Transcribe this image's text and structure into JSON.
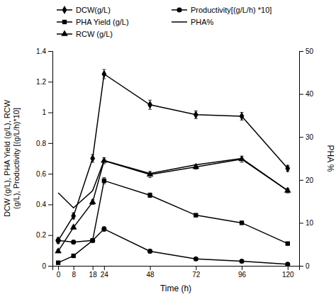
{
  "chart_data": {
    "type": "line",
    "xlabel": "Time (h)",
    "ylabel": "DCW (g/L), PHA Yield (g/L), RCW\n(g/L), Productivity [(g/L/h)*10]",
    "y2label": "PHA %",
    "x": [
      0,
      8,
      18,
      24,
      48,
      72,
      96,
      120
    ],
    "xlim": [
      -3,
      126
    ],
    "xticks": [
      0,
      8,
      18,
      24,
      48,
      72,
      96,
      120
    ],
    "ylim": [
      0,
      1.4
    ],
    "yticks": [
      0,
      0.2,
      0.4,
      0.6,
      0.8,
      1,
      1.2,
      1.4
    ],
    "y2lim": [
      0,
      50
    ],
    "y2ticks": [
      0,
      10,
      20,
      30,
      40,
      50
    ],
    "color": "#000000",
    "grid": false,
    "legend": "top",
    "series": [
      {
        "name": "DCW(g/L)",
        "marker": "diamond",
        "values": [
          0.165,
          0.325,
          0.7,
          1.25,
          1.05,
          0.985,
          0.975,
          0.635
        ],
        "errors": [
          0.02,
          0.02,
          0.025,
          0.03,
          0.03,
          0.025,
          0.025,
          0.02
        ]
      },
      {
        "name": "Productivity[(g/L/h) *10]",
        "marker": "circle",
        "values": [
          0.165,
          0.155,
          0.165,
          0.24,
          0.095,
          0.045,
          0.03,
          0.01
        ],
        "errors": [
          0.01,
          0.01,
          0.01,
          0.015,
          0.01,
          0.005,
          0.005,
          0.005
        ]
      },
      {
        "name": "PHA Yield (g/L)",
        "marker": "square",
        "values": [
          0.02,
          0.065,
          0.165,
          0.555,
          0.46,
          0.33,
          0.28,
          0.145
        ],
        "errors": [
          0.005,
          0.005,
          0.01,
          0.02,
          0.015,
          0.01,
          0.01,
          0.008
        ]
      },
      {
        "name": "PHA%",
        "axis": "y2",
        "values": [
          17,
          13.5,
          17.5,
          24.5,
          21.5,
          23.5,
          25.0,
          17.5
        ]
      },
      {
        "name": "RCW (g/L)",
        "marker": "triangle",
        "values": [
          0.095,
          0.25,
          0.415,
          0.685,
          0.595,
          0.645,
          0.695,
          0.49
        ],
        "errors": [
          0.01,
          0.01,
          0.015,
          0.02,
          0.02,
          0.015,
          0.02,
          0.015
        ]
      }
    ]
  }
}
